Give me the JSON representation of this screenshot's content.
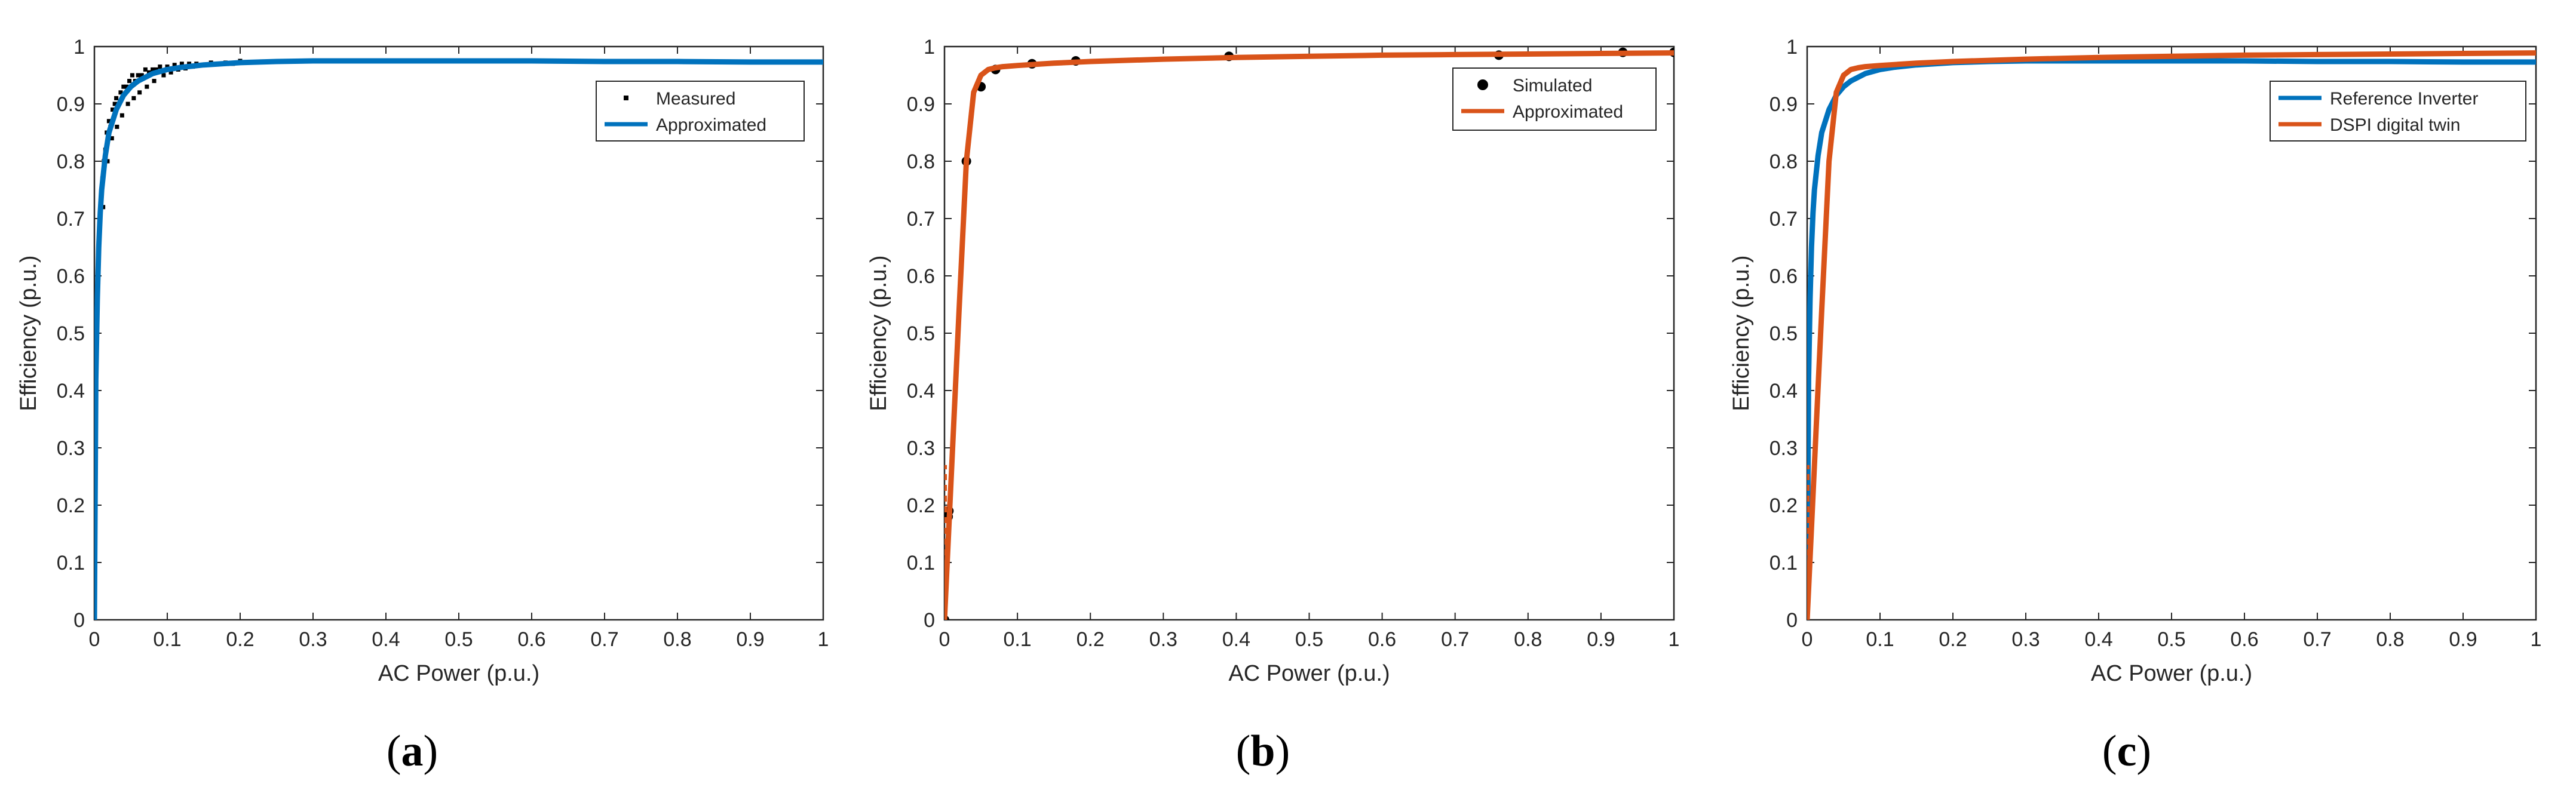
{
  "colors": {
    "blue": "#0072BD",
    "orange": "#D95319",
    "black": "#000000",
    "axis": "#262626"
  },
  "chart_data": [
    {
      "panel": "a",
      "panel_label": {
        "open": "(",
        "letter": "a",
        "close": ")"
      },
      "type": "scatter",
      "xlabel": "AC Power (p.u.)",
      "ylabel": "Efficiency (p.u.)",
      "xlim": [
        0,
        1
      ],
      "ylim": [
        0,
        1
      ],
      "xticks": [
        0,
        0.1,
        0.2,
        0.3,
        0.4,
        0.5,
        0.6,
        0.7,
        0.8,
        0.9,
        1
      ],
      "xtick_labels": [
        "0",
        "0.1",
        "0.2",
        "0.3",
        "0.4",
        "0.5",
        "0.6",
        "0.7",
        "0.8",
        "0.9",
        "1"
      ],
      "yticks": [
        0,
        0.1,
        0.2,
        0.3,
        0.4,
        0.5,
        0.6,
        0.7,
        0.8,
        0.9,
        1
      ],
      "ytick_labels": [
        "0",
        "0.1",
        "0.2",
        "0.3",
        "0.4",
        "0.5",
        "0.6",
        "0.7",
        "0.8",
        "0.9",
        "1"
      ],
      "grid": false,
      "legend_position": "top-right",
      "series": [
        {
          "name": "Measured",
          "kind": "scatter",
          "color": "#000000",
          "x": [
            0.003,
            0.005,
            0.007,
            0.009,
            0.011,
            0.013,
            0.015,
            0.017,
            0.02,
            0.022,
            0.025,
            0.028,
            0.03,
            0.033,
            0.036,
            0.04,
            0.044,
            0.048,
            0.052,
            0.056,
            0.06,
            0.065,
            0.07,
            0.075,
            0.08,
            0.085,
            0.09,
            0.1,
            0.11,
            0.12,
            0.13,
            0.14,
            0.16,
            0.18,
            0.2,
            0.23,
            0.26,
            0.29,
            0.32,
            0.35,
            0.38,
            0.42,
            0.46,
            0.5,
            0.55,
            0.6,
            0.65,
            0.7,
            0.75,
            0.8,
            0.85,
            0.012,
            0.018,
            0.024,
            0.031,
            0.038,
            0.046,
            0.054,
            0.062,
            0.072,
            0.082,
            0.095,
            0.105,
            0.115,
            0.125,
            0.135,
            0.15,
            0.17,
            0.19,
            0.21,
            0.24,
            0.27,
            0.3,
            0.33,
            0.36
          ],
          "y": [
            0.55,
            0.63,
            0.7,
            0.74,
            0.77,
            0.8,
            0.82,
            0.85,
            0.87,
            0.86,
            0.89,
            0.9,
            0.91,
            0.9,
            0.92,
            0.93,
            0.93,
            0.94,
            0.95,
            0.94,
            0.95,
            0.95,
            0.96,
            0.955,
            0.96,
            0.96,
            0.965,
            0.965,
            0.968,
            0.97,
            0.97,
            0.97,
            0.972,
            0.972,
            0.975,
            0.974,
            0.975,
            0.975,
            0.976,
            0.975,
            0.975,
            0.976,
            0.975,
            0.975,
            0.974,
            0.975,
            0.975,
            0.974,
            0.974,
            0.975,
            0.974,
            0.72,
            0.8,
            0.84,
            0.86,
            0.88,
            0.9,
            0.91,
            0.92,
            0.93,
            0.94,
            0.95,
            0.955,
            0.96,
            0.962,
            0.965,
            0.968,
            0.97,
            0.97,
            0.972,
            0.973,
            0.974,
            0.975,
            0.975,
            0.976
          ]
        },
        {
          "name": "Approximated",
          "kind": "line",
          "color": "#0072BD",
          "x": [
            0,
            0.002,
            0.004,
            0.006,
            0.008,
            0.01,
            0.015,
            0.02,
            0.03,
            0.04,
            0.05,
            0.06,
            0.08,
            0.1,
            0.12,
            0.15,
            0.2,
            0.25,
            0.3,
            0.4,
            0.5,
            0.6,
            0.7,
            0.8,
            0.9,
            1
          ],
          "y": [
            0,
            0.42,
            0.56,
            0.65,
            0.71,
            0.75,
            0.81,
            0.85,
            0.89,
            0.915,
            0.93,
            0.94,
            0.953,
            0.96,
            0.964,
            0.968,
            0.972,
            0.974,
            0.975,
            0.975,
            0.975,
            0.975,
            0.974,
            0.974,
            0.973,
            0.973
          ]
        }
      ]
    },
    {
      "panel": "b",
      "panel_label": {
        "open": "(",
        "letter": "b",
        "close": ")"
      },
      "type": "line",
      "xlabel": "AC Power (p.u.)",
      "ylabel": "Efficiency (p.u.)",
      "xlim": [
        0,
        1
      ],
      "ylim": [
        0,
        1
      ],
      "xticks": [
        0,
        0.1,
        0.2,
        0.3,
        0.4,
        0.5,
        0.6,
        0.7,
        0.8,
        0.9,
        1
      ],
      "xtick_labels": [
        "0",
        "0.1",
        "0.2",
        "0.3",
        "0.4",
        "0.5",
        "0.6",
        "0.7",
        "0.8",
        "0.9",
        "1"
      ],
      "yticks": [
        0,
        0.1,
        0.2,
        0.3,
        0.4,
        0.5,
        0.6,
        0.7,
        0.8,
        0.9,
        1
      ],
      "ytick_labels": [
        "0",
        "0.1",
        "0.2",
        "0.3",
        "0.4",
        "0.5",
        "0.6",
        "0.7",
        "0.8",
        "0.9",
        "1"
      ],
      "grid": false,
      "legend_position": "top-right",
      "series": [
        {
          "name": "Simulated",
          "kind": "scatter",
          "color": "#000000",
          "x": [
            0,
            0.005,
            0.006,
            0.03,
            0.05,
            0.07,
            0.12,
            0.18,
            0.39,
            0.76,
            0.93,
            1
          ],
          "y": [
            0,
            0.18,
            0.19,
            0.8,
            0.93,
            0.96,
            0.97,
            0.975,
            0.983,
            0.985,
            0.99,
            0.99
          ]
        },
        {
          "name": "Approximated",
          "kind": "line",
          "color": "#D95319",
          "x": [
            0,
            0.01,
            0.02,
            0.03,
            0.04,
            0.05,
            0.06,
            0.07,
            0.08,
            0.1,
            0.15,
            0.2,
            0.3,
            0.4,
            0.5,
            0.6,
            0.7,
            0.8,
            0.9,
            1
          ],
          "y": [
            0,
            0.27,
            0.54,
            0.8,
            0.92,
            0.95,
            0.96,
            0.963,
            0.965,
            0.967,
            0.971,
            0.974,
            0.978,
            0.981,
            0.983,
            0.985,
            0.986,
            0.987,
            0.988,
            0.989
          ]
        }
      ]
    },
    {
      "panel": "c",
      "panel_label": {
        "open": "(",
        "letter": "c",
        "close": ")"
      },
      "type": "line",
      "xlabel": "AC Power (p.u.)",
      "ylabel": "Efficiency (p.u.)",
      "xlim": [
        0,
        1
      ],
      "ylim": [
        0,
        1
      ],
      "xticks": [
        0,
        0.1,
        0.2,
        0.3,
        0.4,
        0.5,
        0.6,
        0.7,
        0.8,
        0.9,
        1
      ],
      "xtick_labels": [
        "0",
        "0.1",
        "0.2",
        "0.3",
        "0.4",
        "0.5",
        "0.6",
        "0.7",
        "0.8",
        "0.9",
        "1"
      ],
      "yticks": [
        0,
        0.1,
        0.2,
        0.3,
        0.4,
        0.5,
        0.6,
        0.7,
        0.8,
        0.9,
        1
      ],
      "ytick_labels": [
        "0",
        "0.1",
        "0.2",
        "0.3",
        "0.4",
        "0.5",
        "0.6",
        "0.7",
        "0.8",
        "0.9",
        "1"
      ],
      "grid": false,
      "legend_position": "top-right",
      "series": [
        {
          "name": "Reference Inverter",
          "kind": "line",
          "color": "#0072BD",
          "x": [
            0,
            0.002,
            0.004,
            0.006,
            0.008,
            0.01,
            0.015,
            0.02,
            0.03,
            0.04,
            0.05,
            0.06,
            0.08,
            0.1,
            0.12,
            0.15,
            0.2,
            0.25,
            0.3,
            0.4,
            0.5,
            0.6,
            0.7,
            0.8,
            0.9,
            1
          ],
          "y": [
            0,
            0.42,
            0.56,
            0.65,
            0.71,
            0.75,
            0.81,
            0.85,
            0.89,
            0.915,
            0.93,
            0.94,
            0.953,
            0.96,
            0.964,
            0.968,
            0.972,
            0.974,
            0.975,
            0.975,
            0.975,
            0.975,
            0.974,
            0.974,
            0.973,
            0.973
          ]
        },
        {
          "name": "DSPI digital twin",
          "kind": "line",
          "color": "#D95319",
          "x": [
            0,
            0.01,
            0.02,
            0.03,
            0.04,
            0.05,
            0.06,
            0.07,
            0.08,
            0.1,
            0.15,
            0.2,
            0.3,
            0.4,
            0.5,
            0.6,
            0.7,
            0.8,
            0.9,
            1
          ],
          "y": [
            0,
            0.27,
            0.54,
            0.8,
            0.92,
            0.95,
            0.96,
            0.963,
            0.965,
            0.967,
            0.971,
            0.974,
            0.978,
            0.981,
            0.983,
            0.985,
            0.986,
            0.987,
            0.988,
            0.989
          ]
        }
      ]
    }
  ]
}
